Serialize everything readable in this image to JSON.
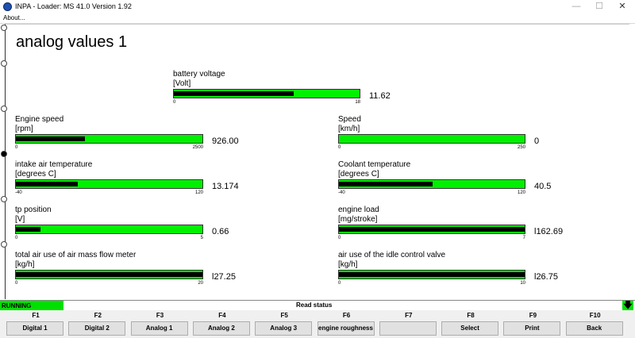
{
  "window": {
    "title": "INPA - Loader:  MS 41.0 Version 1.92",
    "minimize": "—",
    "maximize": "☐",
    "close": "✕"
  },
  "menu": {
    "about": "About..."
  },
  "page": {
    "title": "analog values 1"
  },
  "gauges": [
    {
      "id": "battery-voltage",
      "label": "battery voltage",
      "unit": "[Volt]",
      "min": "0",
      "max": "18",
      "value": "11.62",
      "fraction": 0.646
    },
    {
      "id": "engine-speed",
      "label": "Engine speed",
      "unit": "[rpm]",
      "min": "0",
      "max": "2500",
      "value": "926.00",
      "fraction": 0.37
    },
    {
      "id": "speed",
      "label": "Speed",
      "unit": "[km/h]",
      "min": "0",
      "max": "250",
      "value": "0",
      "fraction": 0.0
    },
    {
      "id": "intake-air-temperature",
      "label": "intake air temperature",
      "unit": "[degrees C]",
      "min": "-40",
      "max": "120",
      "value": "13.174",
      "fraction": 0.332
    },
    {
      "id": "coolant-temperature",
      "label": "Coolant temperature",
      "unit": "[degrees C]",
      "min": "-40",
      "max": "120",
      "value": "40.5",
      "fraction": 0.503
    },
    {
      "id": "tp-position",
      "label": "tp position",
      "unit": "[V]",
      "min": "0",
      "max": "5",
      "value": "0.66",
      "fraction": 0.132
    },
    {
      "id": "engine-load",
      "label": "engine load",
      "unit": "[mg/stroke]",
      "min": "0",
      "max": "7",
      "value": "l162.69",
      "fraction": 1.0
    },
    {
      "id": "total-air-use",
      "label": "total air use of air mass flow meter",
      "unit": "[kg/h]",
      "min": "0",
      "max": "20",
      "value": "l27.25",
      "fraction": 1.0
    },
    {
      "id": "idle-air-use",
      "label": "air use of the idle control valve",
      "unit": "[kg/h]",
      "min": "0",
      "max": "10",
      "value": "l26.75",
      "fraction": 1.0
    }
  ],
  "status": {
    "running": "RUNNING",
    "center": "Read status",
    "arrow": "🡇"
  },
  "fkeys": [
    {
      "key": "F1",
      "label": "Digital 1"
    },
    {
      "key": "F2",
      "label": "Digital 2"
    },
    {
      "key": "F3",
      "label": "Analog 1"
    },
    {
      "key": "F4",
      "label": "Analog 2"
    },
    {
      "key": "F5",
      "label": "Analog 3"
    },
    {
      "key": "F6",
      "label": "engine roughness"
    },
    {
      "key": "F7",
      "label": ""
    },
    {
      "key": "F8",
      "label": "Select"
    },
    {
      "key": "F9",
      "label": "Print"
    },
    {
      "key": "F10",
      "label": "Back"
    }
  ]
}
